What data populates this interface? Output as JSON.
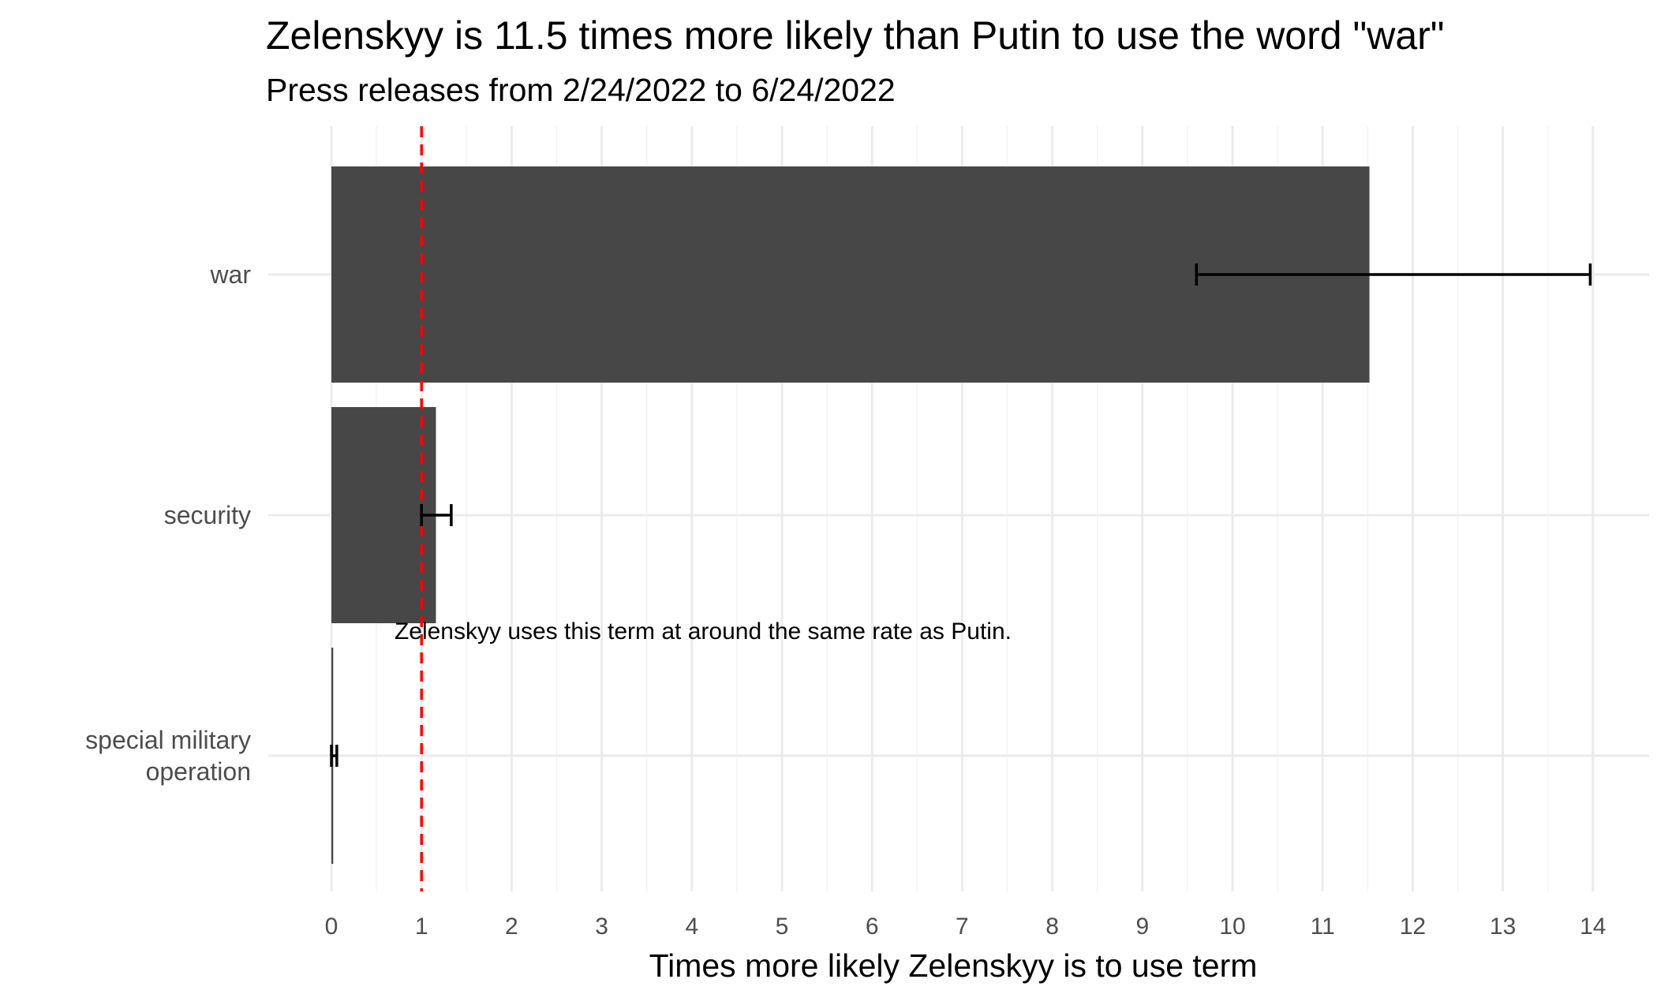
{
  "chart_data": {
    "type": "bar",
    "orientation": "horizontal",
    "title": "Zelenskyy is 11.5 times more likely than Putin to use the word \"war\"",
    "subtitle": "Press releases from 2/24/2022 to 6/24/2022",
    "xlabel": "Times more likely Zelenskyy is to use term",
    "ylabel": "",
    "xlim": [
      0,
      14
    ],
    "xticks": [
      "0",
      "1",
      "2",
      "3",
      "4",
      "5",
      "6",
      "7",
      "8",
      "9",
      "10",
      "11",
      "12",
      "13",
      "14"
    ],
    "categories": [
      {
        "label_lines": [
          "war"
        ],
        "value": 11.52,
        "error_low": 9.6,
        "error_high": 13.97
      },
      {
        "label_lines": [
          "security"
        ],
        "value": 1.16,
        "error_low": 1.0,
        "error_high": 1.33
      },
      {
        "label_lines": [
          "special military",
          "operation"
        ],
        "value": 0.02,
        "error_low": 0.0,
        "error_high": 0.06
      }
    ],
    "reference_line": {
      "x": 1,
      "style": "dashed",
      "color": "#ff0000"
    },
    "annotation": {
      "text": "Zelenskyy uses this term at around the same rate as Putin.",
      "x": 0.7
    },
    "grid": true,
    "legend": "none",
    "colors": {
      "bar": "#474747",
      "grid": "#ebebeb",
      "errorbar": "#000000",
      "reference": "#ff0000"
    }
  }
}
